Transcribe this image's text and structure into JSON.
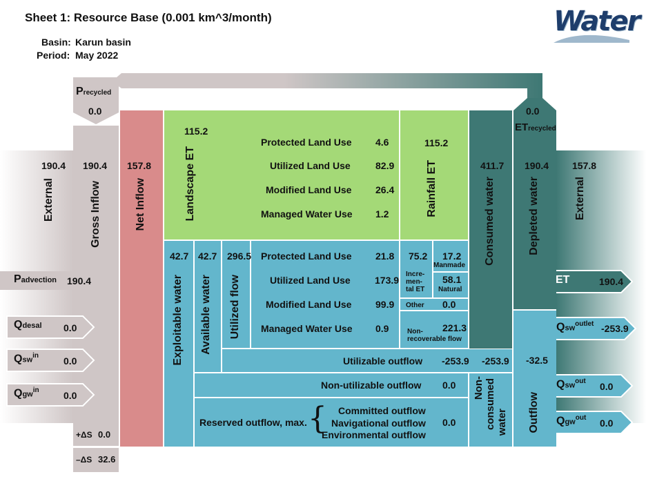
{
  "header": {
    "title": "Sheet 1: Resource Base (0.001 km^3/month)",
    "basin_label": "Basin:",
    "basin_value": "Karun basin",
    "period_label": "Period:",
    "period_value": "May 2022",
    "logo_text": "Water"
  },
  "colors": {
    "green": "#a4d977",
    "blue": "#63b6cc",
    "teal": "#3e7874",
    "pink": "#d98b8b",
    "grey": "#cfc6c6"
  },
  "inflow": {
    "external_label": "External",
    "external_value": "190.4",
    "gross_label": "Gross Inflow",
    "gross_value": "190.4",
    "net_label": "Net Inflow",
    "net_value": "157.8",
    "precycled_main": "P",
    "precycled_sub": "recycled",
    "precycled_value": "0.0",
    "padvection_main": "P",
    "padvection_sub": "advection",
    "padvection_value": "190.4",
    "qdesal_main": "Q",
    "qdesal_sub": "desal",
    "qdesal_value": "0.0",
    "qswin_main": "Q",
    "qswin_sub": "sw",
    "qswin_sup": "in",
    "qswin_value": "0.0",
    "qgwin_main": "Q",
    "qgwin_sub": "gw",
    "qgwin_sup": "in",
    "qgwin_value": "0.0",
    "ds_plus_label": "+ΔS",
    "ds_plus_value": "0.0",
    "ds_minus_label": "–ΔS",
    "ds_minus_value": "32.6"
  },
  "landscape": {
    "label": "Landscape ET",
    "value": "115.2",
    "rows": [
      {
        "label": "Protected Land Use",
        "value": "4.6"
      },
      {
        "label": "Utilized Land Use",
        "value": "82.9"
      },
      {
        "label": "Modified Land Use",
        "value": "26.4"
      },
      {
        "label": "Managed Water Use",
        "value": "1.2"
      }
    ],
    "rainfall_label": "Rainfall ET",
    "rainfall_value": "115.2"
  },
  "utilized": {
    "exploitable_label": "Exploitable water",
    "exploitable_value": "42.7",
    "available_label": "Available water",
    "available_value": "42.7",
    "utilized_label": "Utilized flow",
    "utilized_value": "296.5",
    "rows": [
      {
        "label": "Protected Land Use",
        "value": "21.8"
      },
      {
        "label": "Utilized Land Use",
        "value": "173.9"
      },
      {
        "label": "Modified Land Use",
        "value": "99.9"
      },
      {
        "label": "Managed Water Use",
        "value": "0.9"
      }
    ],
    "incremental_value": "75.2",
    "incremental_label_1": "Incre-",
    "incremental_label_2": "men-",
    "incremental_label_3": "tal ET",
    "manmade_value": "17.2",
    "manmade_label": "Manmade",
    "natural_value": "58.1",
    "natural_label": "Natural",
    "other_label": "Other",
    "other_value": "0.0",
    "nonrec_value": "221.3",
    "nonrec_label_1": "Non-",
    "nonrec_label_2": "recoverable flow"
  },
  "outflows": {
    "utilizable_label": "Utilizable outflow",
    "utilizable_value": "-253.9",
    "nonutilizable_label": "Non-utilizable outflow",
    "nonutilizable_value": "0.0",
    "reserved_label": "Reserved outflow, max.",
    "reserved_value": "0.0",
    "reserved_items": [
      "Committed outflow",
      "Navigational outflow",
      "Environmental outflow"
    ]
  },
  "consumed": {
    "label": "Consumed water",
    "value": "411.7",
    "nonconsumed_label_1": "Non-",
    "nonconsumed_label_2": "consumed",
    "nonconsumed_label_3": "water",
    "nonconsumed_value": "-253.9"
  },
  "depleted": {
    "etrecycled_main": "ET",
    "etrecycled_sub": "recycled",
    "etrecycled_value": "0.0",
    "label": "Depleted water",
    "value": "190.4",
    "outflow_label": "Outflow",
    "outflow_value": "-32.5"
  },
  "external_out": {
    "label": "External",
    "value": "157.8",
    "et_label": "ET",
    "et_value": "190.4",
    "qswoutlet_main": "Q",
    "qswoutlet_sub": "sw",
    "qswoutlet_sup": "outlet",
    "qswoutlet_value": "-253.9",
    "qswout_main": "Q",
    "qswout_sub": "sw",
    "qswout_sup": "out",
    "qswout_value": "0.0",
    "qgwout_main": "Q",
    "qgwout_sub": "gw",
    "qgwout_sup": "out",
    "qgwout_value": "0.0"
  }
}
